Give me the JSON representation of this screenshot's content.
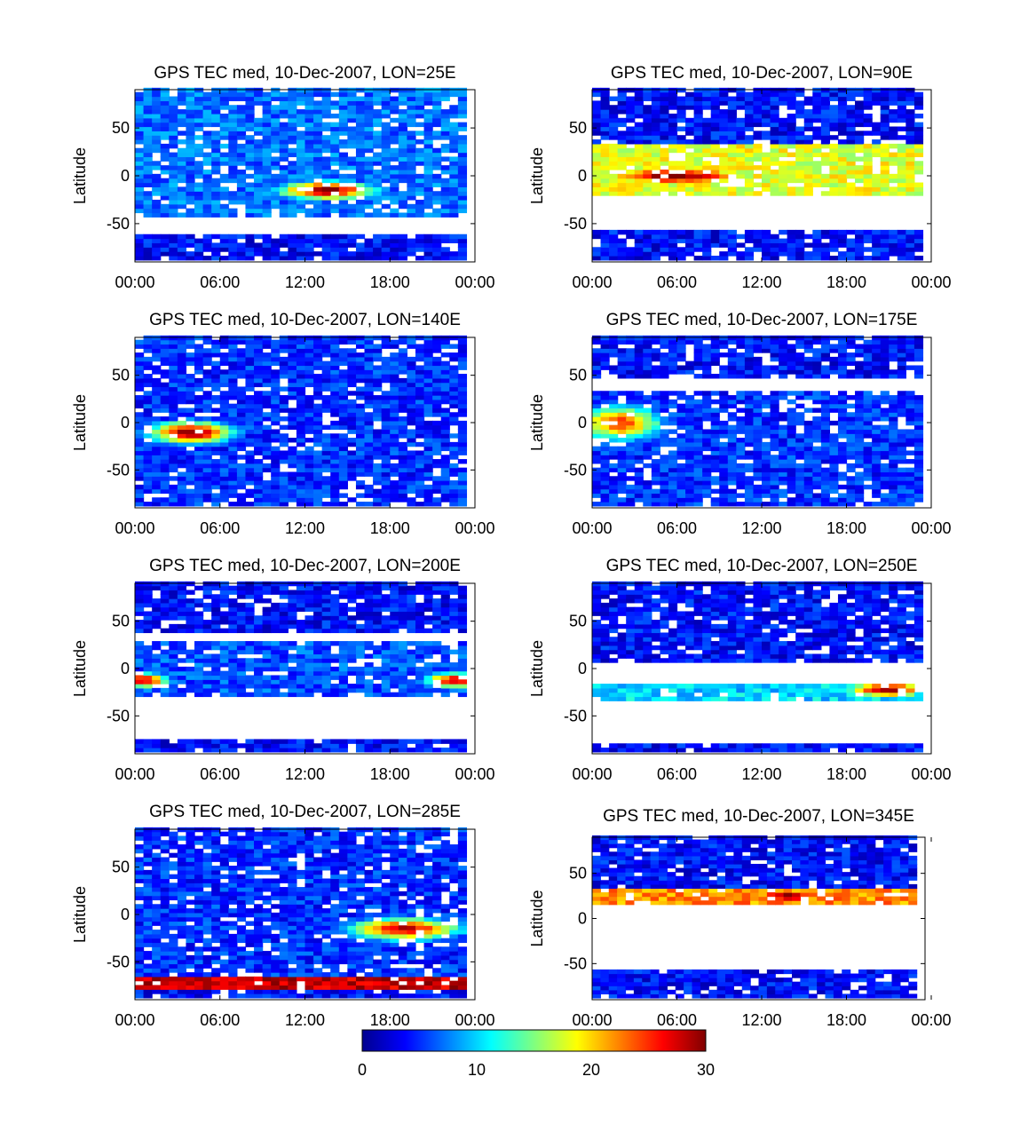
{
  "chart_data": {
    "type": "heatmap",
    "x_tick_labels": [
      "00:00",
      "06:00",
      "12:00",
      "18:00",
      "00:00"
    ],
    "y_tick_labels": [
      "50",
      "0",
      "-50"
    ],
    "ylabel": "Latitude",
    "colorbar": {
      "ticks": [
        "0",
        "10",
        "20",
        "30"
      ],
      "range": [
        0,
        30
      ],
      "colormap": "jet"
    },
    "panels": [
      {
        "title": "GPS TEC med, 10-Dec-2007, LON=25E",
        "xlim": [
          0,
          24
        ],
        "ylim": [
          -90,
          90
        ],
        "clim": [
          0,
          30
        ],
        "coverage_lat_bands": [
          [
            -87,
            -60
          ],
          [
            -45,
            90
          ]
        ],
        "features": [
          {
            "lat_range": [
              -45,
              90
            ],
            "base_tec": 7,
            "peaks": [
              {
                "ut": 13.5,
                "lat": -15,
                "tec": 30,
                "ut_width": 3.5,
                "lat_width": 10
              }
            ]
          }
        ]
      },
      {
        "title": "GPS TEC med, 10-Dec-2007, LON=90E",
        "xlim": [
          0,
          24
        ],
        "ylim": [
          -90,
          90
        ],
        "clim": [
          0,
          30
        ],
        "coverage_lat_bands": [
          [
            -87,
            -55
          ],
          [
            -20,
            90
          ]
        ],
        "features": [
          {
            "lat_range": [
              -20,
              35
            ],
            "base_tec": 18,
            "peaks": [
              {
                "ut": 6,
                "lat": 0,
                "tec": 30,
                "ut_width": 6,
                "lat_width": 10
              }
            ]
          }
        ]
      },
      {
        "title": "GPS TEC med, 10-Dec-2007, LON=140E",
        "xlim": [
          0,
          24
        ],
        "ylim": [
          -90,
          90
        ],
        "clim": [
          0,
          30
        ],
        "coverage_lat_bands": [
          [
            -87,
            90
          ]
        ],
        "features": [
          {
            "lat_range": [
              -87,
              90
            ],
            "base_tec": 5,
            "peaks": [
              {
                "ut": 4,
                "lat": -10,
                "tec": 30,
                "ut_width": 3,
                "lat_width": 12
              }
            ]
          }
        ]
      },
      {
        "title": "GPS TEC med, 10-Dec-2007, LON=175E",
        "xlim": [
          0,
          24
        ],
        "ylim": [
          -90,
          90
        ],
        "clim": [
          0,
          30
        ],
        "coverage_lat_bands": [
          [
            -87,
            35
          ],
          [
            45,
            90
          ]
        ],
        "features": [
          {
            "lat_range": [
              -87,
              35
            ],
            "base_tec": 5,
            "peaks": [
              {
                "ut": 2,
                "lat": 0,
                "tec": 25,
                "ut_width": 3,
                "lat_width": 18
              }
            ]
          }
        ]
      },
      {
        "title": "GPS TEC med, 10-Dec-2007, LON=200E",
        "xlim": [
          0,
          24
        ],
        "ylim": [
          -90,
          90
        ],
        "clim": [
          0,
          30
        ],
        "coverage_lat_bands": [
          [
            -87,
            -75
          ],
          [
            -30,
            30
          ],
          [
            40,
            90
          ]
        ],
        "features": [
          {
            "lat_range": [
              -30,
              30
            ],
            "base_tec": 6,
            "peaks": [
              {
                "ut": 0.5,
                "lat": -12,
                "tec": 28,
                "ut_width": 2,
                "lat_width": 8
              },
              {
                "ut": 22.5,
                "lat": -12,
                "tec": 28,
                "ut_width": 2,
                "lat_width": 8
              }
            ]
          }
        ]
      },
      {
        "title": "GPS TEC med, 10-Dec-2007, LON=250E",
        "xlim": [
          0,
          24
        ],
        "ylim": [
          -90,
          90
        ],
        "clim": [
          0,
          30
        ],
        "coverage_lat_bands": [
          [
            -87,
            -80
          ],
          [
            -35,
            -15
          ],
          [
            5,
            90
          ]
        ],
        "features": [
          {
            "lat_range": [
              -35,
              -15
            ],
            "base_tec": 10,
            "peaks": [
              {
                "ut": 21,
                "lat": -22,
                "tec": 30,
                "ut_width": 3,
                "lat_width": 8
              }
            ]
          }
        ]
      },
      {
        "title": "GPS TEC med, 10-Dec-2007, LON=285E",
        "xlim": [
          0,
          24
        ],
        "ylim": [
          -90,
          90
        ],
        "clim": [
          0,
          30
        ],
        "coverage_lat_bands": [
          [
            -87,
            90
          ]
        ],
        "features": [
          {
            "lat_range": [
              -78,
              -66
            ],
            "base_tec": 28
          },
          {
            "lat_range": [
              -66,
              90
            ],
            "base_tec": 5,
            "peaks": [
              {
                "ut": 19,
                "lat": -15,
                "tec": 28,
                "ut_width": 4,
                "lat_width": 12
              }
            ]
          }
        ]
      },
      {
        "title": "GPS TEC med, 10-Dec-2007, LON=345E",
        "xlim": [
          0,
          24
        ],
        "ylim": [
          -90,
          90
        ],
        "clim": [
          0,
          30
        ],
        "coverage_lat_bands": [
          [
            -87,
            -55
          ],
          [
            15,
            90
          ]
        ],
        "features": [
          {
            "lat_range": [
              15,
              35
            ],
            "base_tec": 22,
            "peaks": [
              {
                "ut": 14,
                "lat": 25,
                "tec": 30,
                "ut_width": 3,
                "lat_width": 8
              }
            ]
          },
          {
            "lat_range": [
              35,
              90
            ],
            "base_tec": 4
          }
        ]
      }
    ]
  }
}
